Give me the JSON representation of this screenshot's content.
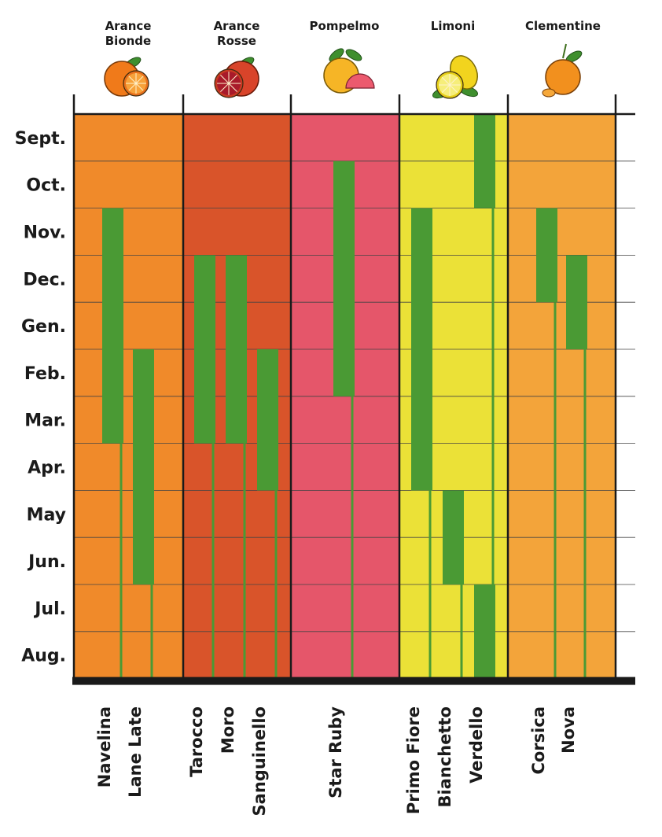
{
  "chart_data": {
    "type": "gantt",
    "months": [
      "Sept.",
      "Oct.",
      "Nov.",
      "Dec.",
      "Gen.",
      "Feb.",
      "Mar.",
      "Apr.",
      "May",
      "Jun.",
      "Jul.",
      "Aug."
    ],
    "categories": [
      {
        "name": "Arance Bionde",
        "title_lines": [
          "Arance",
          "Bionde"
        ],
        "color": "#f08a2a",
        "varieties": [
          {
            "name": "Navelina",
            "start": 2,
            "end": 6
          },
          {
            "name": "Lane Late",
            "start": 5,
            "end": 9
          }
        ]
      },
      {
        "name": "Arance Rosse",
        "title_lines": [
          "Arance",
          "Rosse"
        ],
        "color": "#d9542a",
        "varieties": [
          {
            "name": "Tarocco",
            "start": 3,
            "end": 6
          },
          {
            "name": "Moro",
            "start": 3,
            "end": 6
          },
          {
            "name": "Sanguinello",
            "start": 5,
            "end": 7
          }
        ]
      },
      {
        "name": "Pompelmo",
        "title_lines": [
          "Pompelmo"
        ],
        "color": "#e5566a",
        "varieties": [
          {
            "name": "Star Ruby",
            "start": 1,
            "end": 5
          }
        ]
      },
      {
        "name": "Limoni",
        "title_lines": [
          "Limoni"
        ],
        "color": "#ebe137",
        "varieties": [
          {
            "name": "Primo Fiore",
            "start": 2,
            "end": 7
          },
          {
            "name": "Bianchetto",
            "start": 8,
            "end": 9
          },
          {
            "name": "Verdello",
            "start": 0,
            "end": 1,
            "extra": {
              "start": 10,
              "end": 11
            }
          }
        ]
      },
      {
        "name": "Clementine",
        "title_lines": [
          "Clementine"
        ],
        "color": "#f3a43a",
        "varieties": [
          {
            "name": "Corsica",
            "start": 2,
            "end": 3
          },
          {
            "name": "Nova",
            "start": 3,
            "end": 4
          }
        ]
      }
    ],
    "colors": {
      "season": "#4a9a34",
      "line": "#1a1a1a"
    },
    "icons": [
      "orange-icon",
      "blood-orange-icon",
      "grapefruit-icon",
      "lemon-icon",
      "clementine-icon"
    ]
  }
}
